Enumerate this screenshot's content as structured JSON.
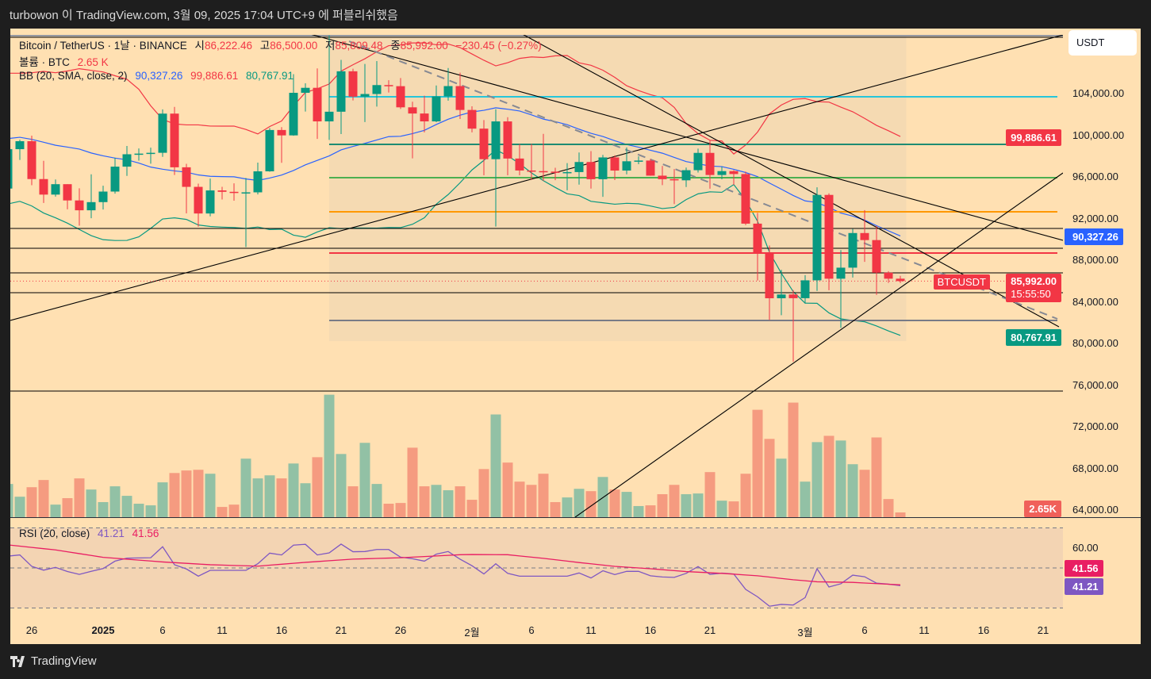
{
  "header": {
    "published": "turbowon 이 TradingView.com, 3월 09, 2025 17:04 UTC+9 에 퍼블리쉬했음"
  },
  "legend": {
    "symbol": "Bitcoin / TetherUS · 1날 · BINANCE",
    "open_label": "시",
    "open": "86,222.46",
    "high_label": "고",
    "high": "86,500.00",
    "low_label": "저",
    "low": "85,809.48",
    "close_label": "종",
    "close": "85,992.00",
    "change": "−230.45 (−0.27%)",
    "volume_label": "볼륨 · BTC",
    "volume": "2.65 K",
    "bb_label": "BB (20, SMA, close, 2)",
    "bb_basis": "90,327.26",
    "bb_upper": "99,886.61",
    "bb_lower": "80,767.91",
    "rsi_label": "RSI (20, close)",
    "rsi": "41.21",
    "rsi_ma": "41.56"
  },
  "price_axis": {
    "currency_button": "USDT",
    "ticks": [
      {
        "v": 104000,
        "t": "104,000.00"
      },
      {
        "v": 100000,
        "t": "100,000.00"
      },
      {
        "v": 96000,
        "t": "96,000.00"
      },
      {
        "v": 92000,
        "t": "92,000.00"
      },
      {
        "v": 88000,
        "t": "88,000.00"
      },
      {
        "v": 84000,
        "t": "84,000.00"
      },
      {
        "v": 80000,
        "t": "80,000.00"
      },
      {
        "v": 76000,
        "t": "76,000.00"
      },
      {
        "v": 72000,
        "t": "72,000.00"
      },
      {
        "v": 68000,
        "t": "68,000.00"
      },
      {
        "v": 64000,
        "t": "64,000.00"
      }
    ],
    "labels": {
      "bb_upper": "99,886.61",
      "bb_basis": "90,327.26",
      "last_price": "85,992.00",
      "countdown": "15:55:50",
      "bb_lower": "80,767.91",
      "volume": "2.65K",
      "rsi_ma": "41.56",
      "rsi": "41.21"
    },
    "symbol_tag": "BTCUSDT",
    "rsi_tick": "60.00"
  },
  "time_axis": [
    {
      "label": "26",
      "day": -6
    },
    {
      "label": "2025",
      "day": 0,
      "bold": true
    },
    {
      "label": "6",
      "day": 5
    },
    {
      "label": "11",
      "day": 10
    },
    {
      "label": "16",
      "day": 15
    },
    {
      "label": "21",
      "day": 20
    },
    {
      "label": "26",
      "day": 25
    },
    {
      "label": "2월",
      "day": 31
    },
    {
      "label": "6",
      "day": 36
    },
    {
      "label": "11",
      "day": 41
    },
    {
      "label": "16",
      "day": 46
    },
    {
      "label": "21",
      "day": 51
    },
    {
      "label": "3월",
      "day": 59
    },
    {
      "label": "6",
      "day": 64
    },
    {
      "label": "11",
      "day": 69
    },
    {
      "label": "16",
      "day": 74
    },
    {
      "label": "21",
      "day": 79
    }
  ],
  "colors": {
    "up": "#089981",
    "down": "#F23645",
    "vol_up": "#92C1A5",
    "vol_down": "#F59B80",
    "bb_upper": "#F23645",
    "bb_basis": "#2962FF",
    "bb_lower": "#089981",
    "rsi": "#7E57C2",
    "rsi_ma": "#E91E63"
  },
  "chart_data": {
    "type": "candlestick",
    "first_candle_day": -8,
    "candles_ohlc_vol": [
      [
        94877,
        99487,
        93806,
        98663,
        18.5
      ],
      [
        98663,
        99569,
        97632,
        99429,
        11.4
      ],
      [
        99429,
        99963,
        95199,
        95791,
        16.7
      ],
      [
        95791,
        97544,
        93500,
        94299,
        20.7
      ],
      [
        94299,
        95757,
        94101,
        95300,
        7.0
      ],
      [
        95300,
        95300,
        92883,
        93738,
        10.6
      ],
      [
        93738,
        94903,
        91317,
        92792,
        21.6
      ],
      [
        92792,
        96250,
        92033,
        93576,
        15.4
      ],
      [
        93576,
        95149,
        92870,
        94591,
        8.4
      ],
      [
        94591,
        97839,
        94392,
        96984,
        17.2
      ],
      [
        96984,
        98976,
        96100,
        98174,
        11.9
      ],
      [
        98174,
        98734,
        97562,
        98236,
        7.5
      ],
      [
        98236,
        98813,
        97271,
        98314,
        6.6
      ],
      [
        98314,
        102482,
        97926,
        102078,
        19.4
      ],
      [
        102078,
        102724,
        96181,
        96922,
        24.6
      ],
      [
        96922,
        97258,
        92500,
        95043,
        26.0
      ],
      [
        95043,
        95349,
        91220,
        92484,
        26.4
      ],
      [
        92484,
        95837,
        92206,
        94701,
        24.2
      ],
      [
        94701,
        95050,
        93831,
        94566,
        5.7
      ],
      [
        94566,
        95378,
        93711,
        94488,
        7.0
      ],
      [
        94488,
        95900,
        89256,
        94516,
        32.6
      ],
      [
        94516,
        97371,
        94316,
        96534,
        21.6
      ],
      [
        96534,
        100681,
        96500,
        100504,
        23.3
      ],
      [
        100504,
        100781,
        97352,
        99987,
        21.6
      ],
      [
        99987,
        105865,
        99951,
        104077,
        29.9
      ],
      [
        104078,
        104988,
        102277,
        104556,
        18.9
      ],
      [
        104556,
        106422,
        99651,
        101331,
        33.4
      ],
      [
        101331,
        109588,
        99550,
        102260,
        68.2
      ],
      [
        102260,
        107240,
        100119,
        106143,
        35.2
      ],
      [
        106144,
        106394,
        103339,
        103706,
        17.2
      ],
      [
        103706,
        106850,
        101262,
        103960,
        41.4
      ],
      [
        103960,
        107120,
        102750,
        104819,
        18.5
      ],
      [
        104820,
        105286,
        104106,
        104714,
        7.5
      ],
      [
        104713,
        105500,
        102520,
        102682,
        7.9
      ],
      [
        102682,
        103222,
        97777,
        102087,
        38.7
      ],
      [
        102087,
        103800,
        100272,
        101332,
        17.2
      ],
      [
        101332,
        104782,
        101256,
        103733,
        18.0
      ],
      [
        103733,
        106457,
        103328,
        104722,
        15.0
      ],
      [
        104722,
        106012,
        101560,
        102429,
        17.2
      ],
      [
        102429,
        102783,
        100279,
        100635,
        9.7
      ],
      [
        100635,
        101456,
        96150,
        97700,
        26.8
      ],
      [
        97700,
        102500,
        91231,
        101328,
        57.2
      ],
      [
        101328,
        101729,
        96150,
        97763,
        30.4
      ],
      [
        97763,
        99149,
        96155,
        96613,
        19.8
      ],
      [
        96613,
        99166,
        95708,
        96554,
        18.0
      ],
      [
        96554,
        100137,
        95620,
        96506,
        24.2
      ],
      [
        96506,
        96880,
        95688,
        96444,
        8.4
      ],
      [
        96444,
        97323,
        94713,
        96462,
        11.0
      ],
      [
        96462,
        98345,
        95256,
        97430,
        15.8
      ],
      [
        97430,
        98478,
        94876,
        95778,
        14.5
      ],
      [
        95778,
        98119,
        94088,
        97869,
        22.4
      ],
      [
        97869,
        98080,
        95700,
        96608,
        15.4
      ],
      [
        96608,
        98826,
        96252,
        97500,
        14.1
      ],
      [
        97500,
        97972,
        97223,
        97569,
        6.2
      ],
      [
        97569,
        97732,
        96101,
        96118,
        6.6
      ],
      [
        96118,
        97046,
        95205,
        95780,
        12.8
      ],
      [
        95780,
        96753,
        93388,
        95671,
        18.0
      ],
      [
        95671,
        96899,
        95029,
        96644,
        12.8
      ],
      [
        96644,
        98711,
        96415,
        98305,
        13.2
      ],
      [
        98305,
        99475,
        94871,
        96181,
        25.1
      ],
      [
        96181,
        96980,
        95770,
        96555,
        9.2
      ],
      [
        96555,
        96650,
        95227,
        96274,
        8.8
      ],
      [
        96274,
        96503,
        91371,
        91510,
        24.2
      ],
      [
        91510,
        92540,
        86050,
        88674,
        59.8
      ],
      [
        88674,
        89414,
        82256,
        84343,
        43.6
      ],
      [
        84343,
        87078,
        82716,
        84704,
        32.6
      ],
      [
        84704,
        85120,
        78258,
        84349,
        63.8
      ],
      [
        84349,
        86558,
        83824,
        86064,
        19.8
      ],
      [
        86064,
        95000,
        85050,
        94270,
        41.8
      ],
      [
        94270,
        94416,
        85117,
        86220,
        45.3
      ],
      [
        86221,
        88967,
        81500,
        87281,
        42.7
      ],
      [
        87281,
        91000,
        86334,
        90606,
        29.5
      ],
      [
        90606,
        92810,
        87836,
        89931,
        26.4
      ],
      [
        89931,
        91283,
        84667,
        86801,
        44.4
      ],
      [
        86801,
        86940,
        85820,
        86222,
        10.1
      ],
      [
        86222,
        86500,
        85809,
        85992,
        2.65
      ]
    ],
    "bb_warmup_closes": [
      98587,
      96945,
      99740,
      99831,
      101109,
      97276,
      96593,
      101125,
      100000,
      101424,
      101420,
      104463,
      106058,
      106133,
      100204,
      97461,
      97805,
      97291,
      95186,
      94877
    ],
    "rsi": [
      55.9,
      56.5,
      50.8,
      48.9,
      50.3,
      48.2,
      46.8,
      48.3,
      49.7,
      53.4,
      54.9,
      55.0,
      55.1,
      60.6,
      51.6,
      49.5,
      45.9,
      48.8,
      48.8,
      48.8,
      48.8,
      52.1,
      57.4,
      56.5,
      61.4,
      61.8,
      56.5,
      57.5,
      61.9,
      58.1,
      58.2,
      59.2,
      59.2,
      55.4,
      54.6,
      53.4,
      56.9,
      58.2,
      54.4,
      51.1,
      47.0,
      52.1,
      47.3,
      45.9,
      45.9,
      45.9,
      45.9,
      45.9,
      47.5,
      45.0,
      48.6,
      46.7,
      48.3,
      48.3,
      46.1,
      45.5,
      45.3,
      47.3,
      50.7,
      46.8,
      47.4,
      47.0,
      39.3,
      35.6,
      30.9,
      31.8,
      31.5,
      35.2,
      49.6,
      40.5,
      42.1,
      46.4,
      45.6,
      42.4,
      41.9,
      41.21
    ],
    "rsi_ma_points": [
      [
        0,
        61.5
      ],
      [
        4,
        59.0
      ],
      [
        8,
        55.3
      ],
      [
        13,
        53.0
      ],
      [
        17,
        51.6
      ],
      [
        21,
        50.9
      ],
      [
        25,
        52.8
      ],
      [
        29,
        54.4
      ],
      [
        33,
        55.1
      ],
      [
        38,
        56.6
      ],
      [
        39,
        56.7
      ],
      [
        42,
        56.6
      ],
      [
        45,
        54.8
      ],
      [
        48,
        52.7
      ],
      [
        51,
        50.8
      ],
      [
        54,
        49.6
      ],
      [
        57,
        48.2
      ],
      [
        60,
        47.3
      ],
      [
        63,
        46.1
      ],
      [
        66,
        44.1
      ],
      [
        68,
        43.1
      ],
      [
        71,
        42.8
      ],
      [
        75,
        41.56
      ]
    ],
    "rsi_levels": [
      70,
      50,
      30
    ],
    "drawings": {
      "horizontal": [
        {
          "price": 103700,
          "color": "#26C6DA",
          "from_day": 19,
          "w": 2
        },
        {
          "price": 99124,
          "color": "#1E8C72",
          "from_day": 19,
          "w": 2
        },
        {
          "price": 95924,
          "color": "#4CAF50",
          "from_day": 19,
          "w": 2
        },
        {
          "price": 92650,
          "color": "#FF9800",
          "from_day": 19,
          "w": 2
        },
        {
          "price": 91050,
          "color": "#000000",
          "w": 1
        },
        {
          "price": 89143,
          "color": "#000000",
          "w": 1
        },
        {
          "price": 88686,
          "color": "#F23645",
          "from_day": 19,
          "w": 2
        },
        {
          "price": 86780,
          "color": "#000000",
          "w": 1
        },
        {
          "price": 84876,
          "color": "#000000",
          "w": 1
        },
        {
          "price": 82210,
          "color": "#787B86",
          "from_day": 19,
          "w": 2
        },
        {
          "price": 75429,
          "color": "#000000",
          "w": 1
        },
        {
          "price": 109562,
          "color": "#9598A1",
          "w": 2
        },
        {
          "price": 109410,
          "color": "#000000",
          "w": 1
        }
      ],
      "trendlines": [
        {
          "d1": -7.8,
          "p1": 82210,
          "d2": 80.67,
          "p2": 109638,
          "color": "#000000"
        },
        {
          "d1": 16.67,
          "p1": 109943,
          "d2": 80.67,
          "p2": 89905,
          "color": "#000000"
        },
        {
          "d1": 34.87,
          "p1": 109943,
          "d2": 80.33,
          "p2": 81600,
          "color": "#000000"
        },
        {
          "d1": 20.67,
          "p1": 109029,
          "d2": 80.2,
          "p2": 82362,
          "color": "#868993",
          "dashed": true
        },
        {
          "d1": 39.67,
          "p1": 63314,
          "d2": 80.67,
          "p2": 96381,
          "color": "#000000"
        }
      ],
      "highlight_range_days": [
        19,
        67.5
      ]
    }
  },
  "footer": {
    "brand": "TradingView"
  }
}
